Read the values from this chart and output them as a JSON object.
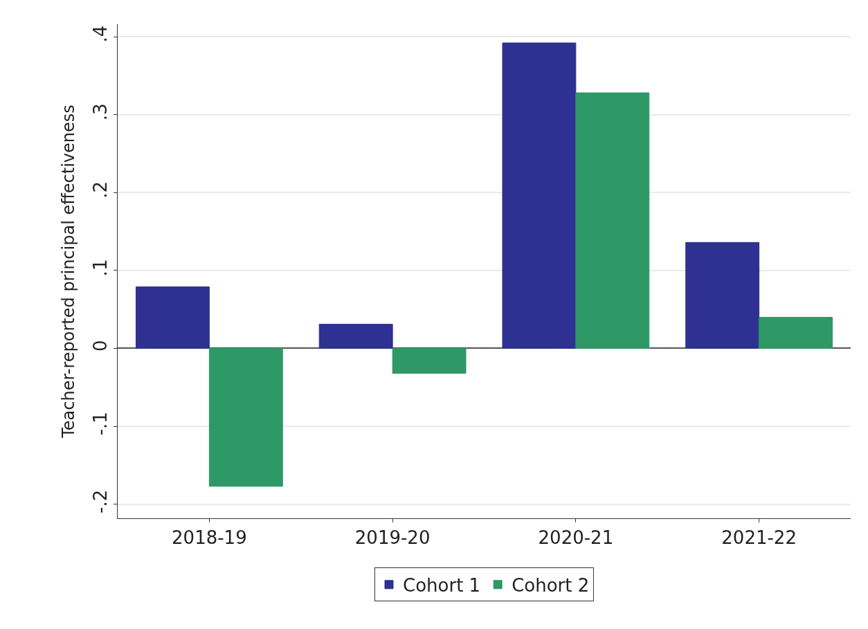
{
  "chart_data": {
    "type": "bar",
    "ylabel": "Teacher-reported principal effectiveness",
    "categories": [
      "2018-19",
      "2019-20",
      "2020-21",
      "2021-22"
    ],
    "series": [
      {
        "name": "Cohort 1",
        "color": "#2e3192",
        "values": [
          0.079,
          0.031,
          0.392,
          0.136
        ]
      },
      {
        "name": "Cohort 2",
        "color": "#2e9966",
        "values": [
          -0.177,
          -0.032,
          0.328,
          0.04
        ]
      }
    ],
    "ylim": [
      -0.218,
      0.416
    ],
    "yticks": [
      {
        "value": -0.2,
        "label": "-.2"
      },
      {
        "value": -0.1,
        "label": "-.1"
      },
      0,
      {
        "value": 0.1,
        "label": ".1"
      },
      {
        "value": 0.2,
        "label": ".2"
      },
      {
        "value": 0.3,
        "label": ".3"
      },
      {
        "value": 0.4,
        "label": ".4"
      }
    ],
    "grid": "y",
    "legend": "bottom"
  }
}
